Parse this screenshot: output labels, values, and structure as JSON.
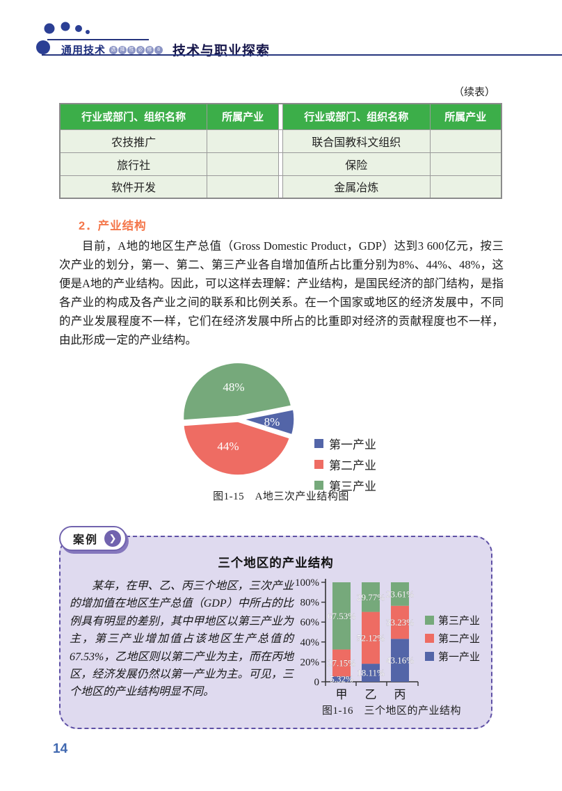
{
  "header": {
    "brand": "通用技术",
    "badge_chars": [
      "选",
      "择",
      "性",
      "必",
      "修",
      "8"
    ],
    "subject": "技术与职业探索"
  },
  "continued_note": "（续表）",
  "table": {
    "headers": [
      "行业或部门、组织名称",
      "所属产业",
      "行业或部门、组织名称",
      "所属产业"
    ],
    "rows": [
      [
        "农技推广",
        "",
        "联合国教科文组织",
        ""
      ],
      [
        "旅行社",
        "",
        "保险",
        ""
      ],
      [
        "软件开发",
        "",
        "金属冶炼",
        ""
      ]
    ]
  },
  "section": {
    "heading": "2．产业结构",
    "paragraph": "目前，A地的地区生产总值（Gross Domestic Product，GDP）达到3 600亿元，按三次产业的划分，第一、第二、第三产业各自增加值所占比重分别为8%、44%、48%，这便是A地的产业结构。因此，可以这样去理解：产业结构，是国民经济的部门结构，是指各产业的构成及各产业之间的联系和比例关系。在一个国家或地区的经济发展中，不同的产业发展程度不一样，它们在经济发展中所占的比重即对经济的贡献程度也不一样，由此形成一定的产业结构。"
  },
  "chart_data": [
    {
      "type": "pie",
      "title": "图1-15　A地三次产业结构图",
      "start_angle_deg": 184,
      "slices": [
        {
          "name": "第三产业",
          "value": 48,
          "label": "48%",
          "color": "#76a97b"
        },
        {
          "name": "第一产业",
          "value": 8,
          "label": "8%",
          "color": "#5365a8"
        },
        {
          "name": "第二产业",
          "value": 44,
          "label": "44%",
          "color": "#ee6c63"
        }
      ],
      "legend_order": [
        "第一产业",
        "第二产业",
        "第三产业"
      ],
      "legend_position": "right"
    },
    {
      "type": "bar",
      "stacked": true,
      "title": "图1-16　三个地区的产业结构",
      "categories": [
        "甲",
        "乙",
        "丙"
      ],
      "series": [
        {
          "name": "第一产业",
          "color": "#5365a8",
          "values": [
            5.32,
            18.11,
            43.16
          ],
          "labels": [
            "5.32%",
            "18.11%",
            "43.16%"
          ]
        },
        {
          "name": "第二产业",
          "color": "#ee6c63",
          "values": [
            27.15,
            52.12,
            33.23
          ],
          "labels": [
            "27.15%",
            "52.12%",
            "33.23%"
          ]
        },
        {
          "name": "第三产业",
          "color": "#76a97b",
          "values": [
            67.53,
            29.77,
            23.61
          ],
          "labels": [
            "67.53%",
            "29.77%",
            "23.61%"
          ]
        }
      ],
      "y_ticks": [
        "0",
        "20%",
        "40%",
        "60%",
        "80%",
        "100%"
      ],
      "ylim": [
        0,
        100
      ],
      "legend_order": [
        "第三产业",
        "第二产业",
        "第一产业"
      ],
      "legend_position": "right",
      "grid": false
    }
  ],
  "case": {
    "tab_label": "案例",
    "tab_arrow": "❯",
    "title": "三个地区的产业结构",
    "body": "某年，在甲、乙、丙三个地区，三次产业的增加值在地区生产总值（GDP）中所占的比例具有明显的差别，其中甲地区以第三产业为主，第三产业增加值占该地区生产总值的67.53%，乙地区则以第二产业为主，而在丙地区，经济发展仍然以第一产业为主。可见，三个地区的产业结构明显不同。"
  },
  "page_number": "14",
  "colors": {
    "header_blue": "#26357e",
    "table_header_green": "#3cae49",
    "table_cell_green": "#eaf2e4",
    "heading_orange": "#f4764a",
    "case_background": "#dfdaef",
    "case_border_purple": "#5e50a5",
    "page_number_blue": "#4068b0"
  }
}
